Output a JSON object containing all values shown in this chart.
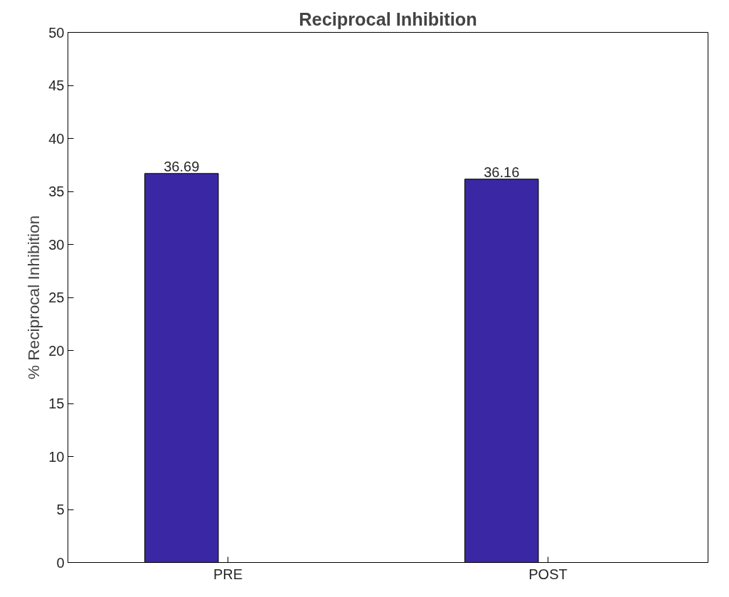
{
  "chart_data": {
    "type": "bar",
    "title": "Reciprocal Inhibition",
    "ylabel": "% Reciprocal Inhibition",
    "categories": [
      "PRE",
      "POST"
    ],
    "values": [
      36.69,
      36.16
    ],
    "color": "#3a27a3",
    "ylim": [
      0,
      50
    ],
    "yticks": [
      0,
      5,
      10,
      15,
      20,
      25,
      30,
      35,
      40,
      45,
      50
    ],
    "data_labels": true,
    "grid": false
  }
}
